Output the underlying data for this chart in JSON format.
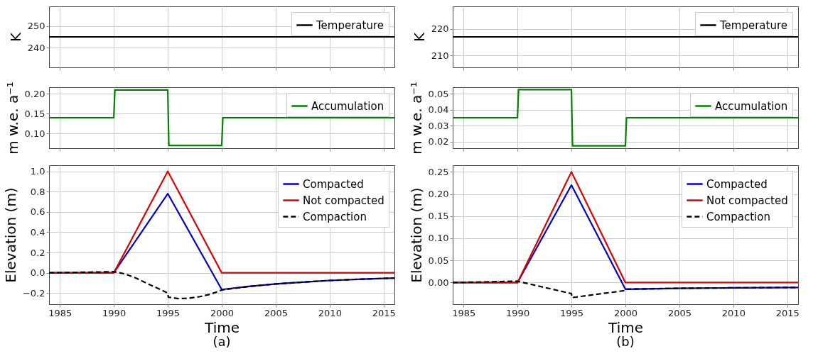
{
  "chart_data": [
    {
      "type": "line",
      "ylabel": "K",
      "xlim": [
        1984,
        2016
      ],
      "xticks": [
        1985,
        1990,
        1995,
        2000,
        2005,
        2010,
        2015
      ],
      "ylim": [
        231,
        259
      ],
      "yticks": [
        240,
        250
      ],
      "tick_labels": "y",
      "grid": true,
      "legend": "top right",
      "series": [
        {
          "name": "Temperature",
          "color": "#000000",
          "x": [
            1984,
            2016
          ],
          "values": [
            245,
            245
          ]
        }
      ]
    },
    {
      "type": "line",
      "ylabel": "K",
      "xlim": [
        1984,
        2016
      ],
      "xticks": [
        1985,
        1990,
        1995,
        2000,
        2005,
        2010,
        2015
      ],
      "ylim": [
        205.5,
        228.5
      ],
      "yticks": [
        210,
        220
      ],
      "tick_labels": "y",
      "grid": true,
      "legend": "top right",
      "series": [
        {
          "name": "Temperature",
          "color": "#000000",
          "x": [
            1984,
            2016
          ],
          "values": [
            217,
            217
          ]
        }
      ]
    },
    {
      "type": "line",
      "ylabel": "m w.e. a⁻¹",
      "xlim": [
        1984,
        2016
      ],
      "xticks": [
        1985,
        1990,
        1995,
        2000,
        2005,
        2010,
        2015
      ],
      "ylim": [
        0.063,
        0.217
      ],
      "yticks": [
        {
          "value": 0.1,
          "label": "0.10"
        },
        {
          "value": 0.15,
          "label": "0.15"
        },
        {
          "value": 0.2,
          "label": "0.20"
        }
      ],
      "tick_labels": "y",
      "grid": true,
      "legend": "top right",
      "series": [
        {
          "name": "Accumulation",
          "color": "#008000",
          "x": [
            1984,
            1990,
            1990.1,
            1995,
            1995.1,
            2000,
            2000.1,
            2016
          ],
          "values": [
            0.14,
            0.14,
            0.21,
            0.21,
            0.07,
            0.07,
            0.14,
            0.14
          ]
        }
      ]
    },
    {
      "type": "line",
      "ylabel": "m w.e. a⁻¹",
      "xlim": [
        1984,
        2016
      ],
      "xticks": [
        1985,
        1990,
        1995,
        2000,
        2005,
        2010,
        2015
      ],
      "ylim": [
        0.016,
        0.054
      ],
      "yticks": [
        {
          "value": 0.02,
          "label": "0.02"
        },
        {
          "value": 0.03,
          "label": "0.03"
        },
        {
          "value": 0.04,
          "label": "0.04"
        },
        {
          "value": 0.05,
          "label": "0.05"
        }
      ],
      "tick_labels": "y",
      "grid": true,
      "legend": "top right",
      "series": [
        {
          "name": "Accumulation",
          "color": "#008000",
          "x": [
            1984,
            1990,
            1990.1,
            1995,
            1995.1,
            2000,
            2000.1,
            2016
          ],
          "values": [
            0.035,
            0.035,
            0.0525,
            0.0525,
            0.0175,
            0.0175,
            0.035,
            0.035
          ]
        }
      ]
    },
    {
      "type": "line",
      "xlabel": "Time",
      "ylabel": "Elevation (m)",
      "xlim": [
        1984,
        2016
      ],
      "xticks": [
        1985,
        1990,
        1995,
        2000,
        2005,
        2010,
        2015
      ],
      "ylim": [
        -0.31,
        1.06
      ],
      "yticks": [
        {
          "value": -0.2,
          "label": "−0.2"
        },
        {
          "value": 0,
          "label": "0.0"
        },
        0.2,
        0.4,
        0.6,
        0.8,
        {
          "value": 1,
          "label": "1.0"
        }
      ],
      "grid": true,
      "legend": "top right",
      "annotations": [
        "(a)"
      ],
      "series": [
        {
          "name": "Compacted",
          "color": "#0000cc",
          "x": [
            1984,
            1990,
            1995,
            2000,
            2002.5,
            2005,
            2007.5,
            2010,
            2013,
            2016
          ],
          "values": [
            0,
            0,
            0.78,
            -0.165,
            -0.135,
            -0.11,
            -0.092,
            -0.076,
            -0.063,
            -0.052
          ]
        },
        {
          "name": "Not compacted",
          "color": "#dd0000",
          "x": [
            1984,
            1990,
            1995,
            2000,
            2016
          ],
          "values": [
            0,
            0,
            1.0,
            0,
            0
          ]
        },
        {
          "name": "Compaction",
          "color": "#000000",
          "line_style": "dashed",
          "x": [
            1984,
            1990,
            1991,
            1992,
            1993,
            1994,
            1995,
            1995.05,
            1996,
            1997,
            1998,
            1999,
            2000,
            2002.5,
            2005,
            2007.5,
            2010,
            2013,
            2016
          ],
          "values": [
            0,
            0.01,
            -0.01,
            -0.05,
            -0.1,
            -0.15,
            -0.2,
            -0.24,
            -0.255,
            -0.25,
            -0.235,
            -0.21,
            -0.17,
            -0.135,
            -0.11,
            -0.092,
            -0.076,
            -0.063,
            -0.052
          ]
        }
      ]
    },
    {
      "type": "line",
      "xlabel": "Time",
      "ylabel": "Elevation (m)",
      "xlim": [
        1984,
        2016
      ],
      "xticks": [
        1985,
        1990,
        1995,
        2000,
        2005,
        2010,
        2015
      ],
      "ylim": [
        -0.049,
        0.265
      ],
      "yticks": [
        {
          "value": 0,
          "label": "0.00"
        },
        0.05,
        {
          "value": 0.1,
          "label": "0.10"
        },
        0.15,
        {
          "value": 0.2,
          "label": "0.20"
        },
        0.25
      ],
      "grid": true,
      "legend": "top right",
      "annotations": [
        "(b)"
      ],
      "series": [
        {
          "name": "Compacted",
          "color": "#0000cc",
          "x": [
            1984,
            1990,
            1995,
            2000,
            2005,
            2010,
            2016
          ],
          "values": [
            0,
            0,
            0.22,
            -0.015,
            -0.013,
            -0.012,
            -0.011
          ]
        },
        {
          "name": "Not compacted",
          "color": "#dd0000",
          "x": [
            1984,
            1990,
            1995,
            2000,
            2016
          ],
          "values": [
            0,
            0,
            0.25,
            0,
            0
          ]
        },
        {
          "name": "Compaction",
          "color": "#000000",
          "line_style": "dashed",
          "x": [
            1984,
            1990,
            1995,
            1995.05,
            2000,
            2000.05,
            2005,
            2010,
            2016
          ],
          "values": [
            0,
            0.003,
            -0.025,
            -0.034,
            -0.018,
            -0.015,
            -0.013,
            -0.012,
            -0.011
          ]
        }
      ]
    }
  ]
}
